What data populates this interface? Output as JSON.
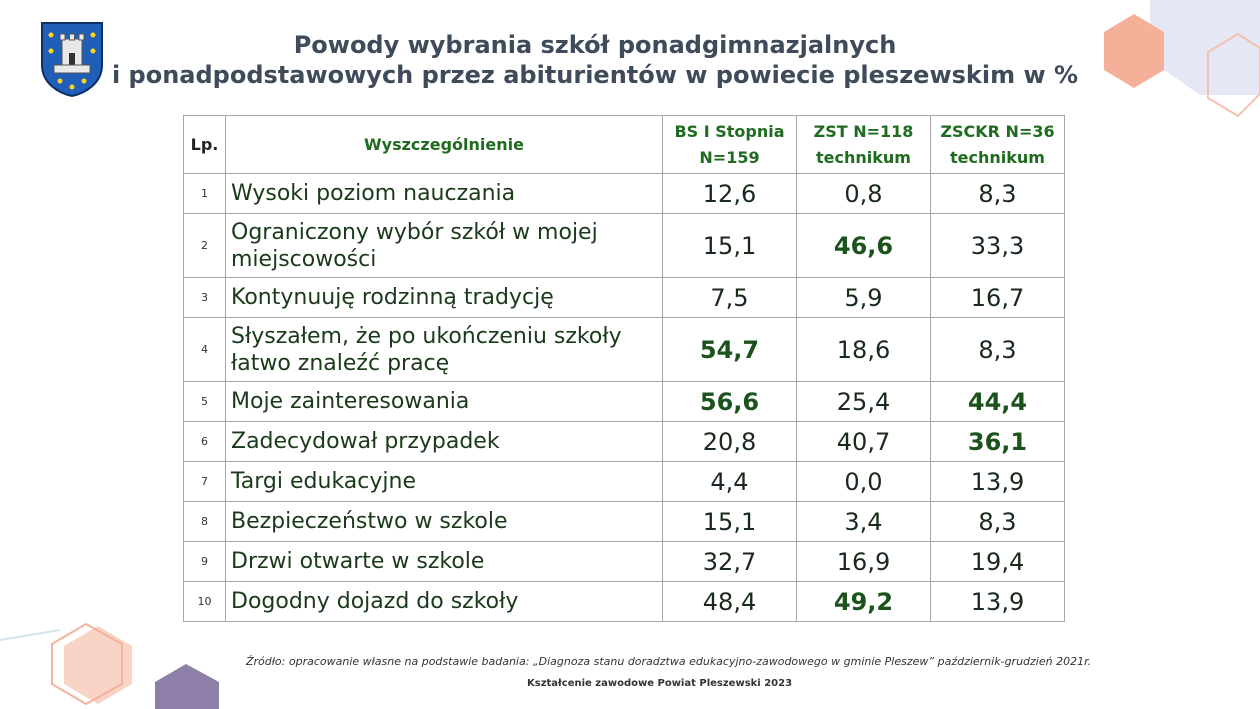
{
  "title": {
    "line1": "Powody wybrania szkół ponadgimnazjalnych",
    "line2": "i ponadpodstawowych przez abiturientów w powiecie pleszewskim w %"
  },
  "table": {
    "headers": {
      "lp": "Lp.",
      "name": "Wyszczególnienie",
      "col1_line1": "BS I Stopnia",
      "col1_line2": "N=159",
      "col2_line1": "ZST N=118",
      "col2_line2": "technikum",
      "col3_line1": "ZSCKR N=36",
      "col3_line2": "technikum"
    },
    "rows": [
      {
        "lp": "1",
        "name": "Wysoki poziom nauczania",
        "v1": "12,6",
        "v2": "0,8",
        "v3": "8,3",
        "bold": []
      },
      {
        "lp": "2",
        "name": "Ograniczony wybór szkół w mojej miejscowości",
        "v1": "15,1",
        "v2": "46,6",
        "v3": "33,3",
        "bold": [
          2
        ]
      },
      {
        "lp": "3",
        "name": "Kontynuuję rodzinną tradycję",
        "v1": "7,5",
        "v2": "5,9",
        "v3": "16,7",
        "bold": []
      },
      {
        "lp": "4",
        "name": "Słyszałem, że po ukończeniu szkoły łatwo znaleźć pracę",
        "v1": "54,7",
        "v2": "18,6",
        "v3": "8,3",
        "bold": [
          1
        ]
      },
      {
        "lp": "5",
        "name": "Moje zainteresowania",
        "v1": "56,6",
        "v2": "25,4",
        "v3": "44,4",
        "bold": [
          1,
          3
        ]
      },
      {
        "lp": "6",
        "name": "Zadecydował przypadek",
        "v1": "20,8",
        "v2": "40,7",
        "v3": "36,1",
        "bold": [
          3
        ]
      },
      {
        "lp": "7",
        "name": "Targi edukacyjne",
        "v1": "4,4",
        "v2": "0,0",
        "v3": "13,9",
        "bold": []
      },
      {
        "lp": "8",
        "name": "Bezpieczeństwo w szkole",
        "v1": "15,1",
        "v2": "3,4",
        "v3": "8,3",
        "bold": []
      },
      {
        "lp": "9",
        "name": "Drzwi otwarte w szkole",
        "v1": "32,7",
        "v2": "16,9",
        "v3": "19,4",
        "bold": []
      },
      {
        "lp": "10",
        "name": "Dogodny dojazd do szkoły",
        "v1": "48,4",
        "v2": "49,2",
        "v3": "13,9",
        "bold": [
          2
        ]
      }
    ]
  },
  "source": "Źródło: opracowanie własne na podstawie badania: „Diagnoza stanu doradztwa edukacyjno-zawodowego w gminie Pleszew” październik-grudzień 2021r.",
  "footer": "Kształcenie zawodowe Powiat Pleszewski 2023",
  "colors": {
    "header_text": "#1f6b1f",
    "title_text": "#3f4a5a",
    "hex_orange": "#f5b29b",
    "hex_lavender": "#dde0f0",
    "hex_purple": "#8e7fa8",
    "crest_blue": "#1f5fb8"
  },
  "icons": [
    "coat-of-arms-icon"
  ]
}
